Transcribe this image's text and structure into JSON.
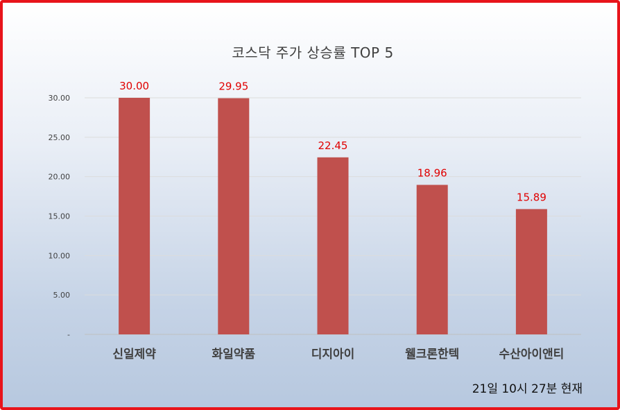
{
  "chart_data": {
    "type": "bar",
    "title": "코스닥 주가 상승률 TOP 5",
    "categories": [
      "신일제약",
      "화일약품",
      "디지아이",
      "웰크론한텍",
      "수산아이앤티"
    ],
    "values": [
      30.0,
      29.95,
      22.45,
      18.96,
      15.89
    ],
    "data_labels": [
      "30.00",
      "29.95",
      "22.45",
      "18.96",
      "15.89"
    ],
    "yticks": [
      0,
      5,
      10,
      15,
      20,
      25,
      30
    ],
    "ytick_labels": [
      "-",
      "5.00",
      "10.00",
      "15.00",
      "20.00",
      "25.00",
      "30.00"
    ],
    "ylim": [
      0,
      30
    ],
    "grid": true,
    "colors": {
      "bar": "#c0504d",
      "data_label": "#e00000",
      "border": "#e8141b"
    }
  },
  "footer": {
    "timestamp": "21일  10시  27분  현재"
  }
}
